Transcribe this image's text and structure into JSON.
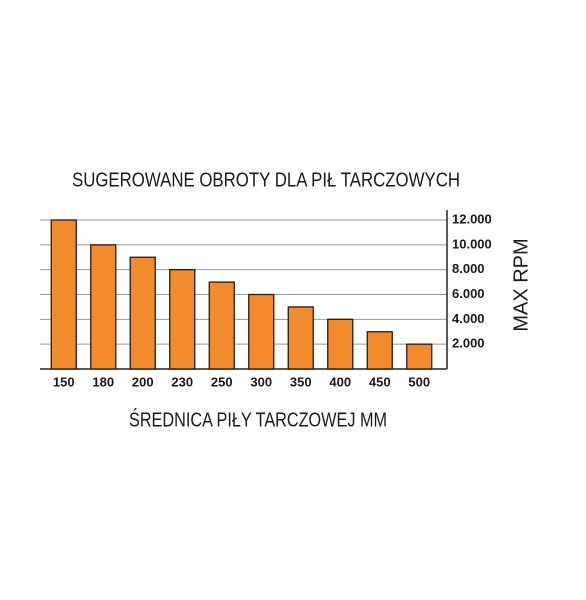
{
  "chart_data": {
    "type": "bar",
    "title": "SUGEROWANE OBROTY DLA PIŁ TARCZOWYCH",
    "x_label": "ŚREDNICA PIŁY TARCZOWEJ MM",
    "y_label": "MAX RPM",
    "categories": [
      "150",
      "180",
      "200",
      "230",
      "250",
      "300",
      "350",
      "400",
      "450",
      "500"
    ],
    "values": [
      12000,
      10000,
      9000,
      8000,
      7000,
      6000,
      5000,
      4000,
      3000,
      2000
    ],
    "color": "#f28a2e",
    "ylim": [
      0,
      12000
    ],
    "yticks": [
      {
        "value": 2000,
        "label": "2.000"
      },
      {
        "value": 4000,
        "label": "4.000"
      },
      {
        "value": 6000,
        "label": "6.000"
      },
      {
        "value": 8000,
        "label": "8.000"
      },
      {
        "value": 10000,
        "label": "10.000"
      },
      {
        "value": 12000,
        "label": "12.000"
      }
    ],
    "grid": true
  }
}
